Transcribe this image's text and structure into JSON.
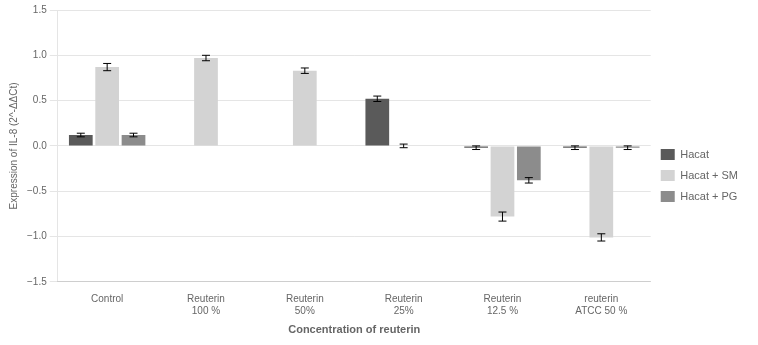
{
  "chart_data": {
    "type": "bar",
    "categories": [
      "Control",
      "Reuterin\n100 %",
      "Reuterin\n50%",
      "Reuterin\n25%",
      "Reuterin\n12.5 %",
      "reuterin\nATCC 50 %"
    ],
    "series": [
      {
        "name": "Hacat",
        "color": "#5a5a5a",
        "values": [
          0.12,
          0.0,
          0.0,
          0.52,
          -0.02,
          -0.02
        ],
        "errors": [
          0.02,
          0.0,
          0.0,
          0.03,
          0.02,
          0.02
        ]
      },
      {
        "name": "Hacat + SM",
        "color": "#d3d3d3",
        "values": [
          0.87,
          0.97,
          0.83,
          0.0,
          -0.78,
          -1.01
        ],
        "errors": [
          0.04,
          0.03,
          0.03,
          0.02,
          0.05,
          0.04
        ]
      },
      {
        "name": "Hacat + PG",
        "color": "#8c8c8c",
        "values": [
          0.12,
          0.0,
          0.0,
          0.0,
          -0.38,
          -0.02
        ],
        "errors": [
          0.02,
          0.0,
          0.0,
          0.0,
          0.03,
          0.02
        ]
      }
    ],
    "ylabel": "Expression of IL-8 (2^-ΔΔCt)",
    "xlabel": "Concentration of reuterin",
    "ylim": [
      -1.5,
      1.5
    ],
    "yticks": [
      {
        "value": -1.5,
        "label": "−1.5"
      },
      {
        "value": -1.0,
        "label": "−1.0"
      },
      {
        "value": -0.5,
        "label": "−0.5"
      },
      {
        "value": 0.0,
        "label": "0.0"
      },
      0.5,
      {
        "value": 1.0,
        "label": "1.0"
      },
      1.5
    ],
    "grid": true,
    "legend": "right"
  }
}
